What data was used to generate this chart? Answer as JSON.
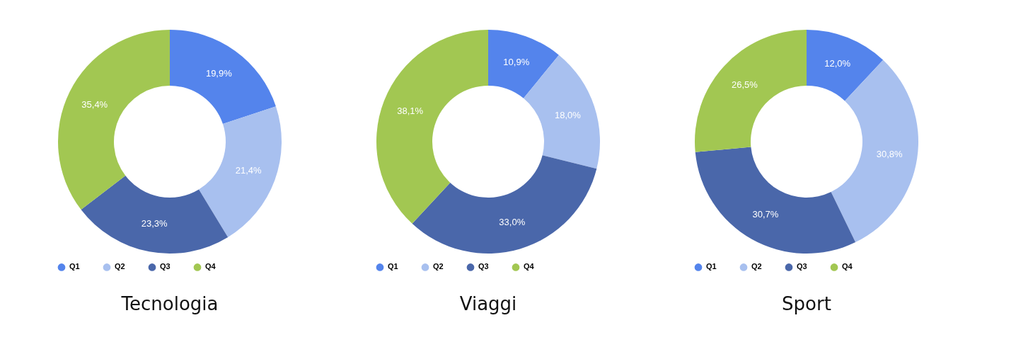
{
  "chart_data": [
    {
      "type": "donut",
      "title": "Tecnologia",
      "categories": [
        "Q1",
        "Q2",
        "Q3",
        "Q4"
      ],
      "values": [
        19.9,
        21.4,
        23.3,
        35.4
      ],
      "value_labels": [
        "19,9%",
        "21,4%",
        "23,3%",
        "35,4%"
      ],
      "colors": [
        "#5484ec",
        "#a8c0ef",
        "#4a67aa",
        "#a2c752"
      ],
      "legend": "bottom"
    },
    {
      "type": "donut",
      "title": "Viaggi",
      "categories": [
        "Q1",
        "Q2",
        "Q3",
        "Q4"
      ],
      "values": [
        10.9,
        18.0,
        33.0,
        38.1
      ],
      "value_labels": [
        "10,9%",
        "18,0%",
        "33,0%",
        "38,1%"
      ],
      "colors": [
        "#5484ec",
        "#a8c0ef",
        "#4a67aa",
        "#a2c752"
      ],
      "legend": "bottom"
    },
    {
      "type": "donut",
      "title": "Sport",
      "categories": [
        "Q1",
        "Q2",
        "Q3",
        "Q4"
      ],
      "values": [
        12.0,
        30.8,
        30.7,
        26.5
      ],
      "value_labels": [
        "12,0%",
        "30,8%",
        "30,7%",
        "26,5%"
      ],
      "colors": [
        "#5484ec",
        "#a8c0ef",
        "#4a67aa",
        "#a2c752"
      ],
      "legend": "bottom"
    }
  ]
}
